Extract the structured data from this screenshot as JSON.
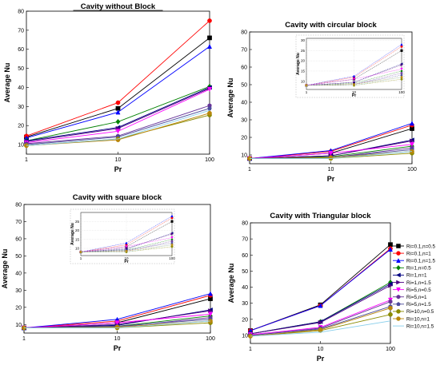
{
  "xcats": [
    "1",
    "10",
    "100"
  ],
  "colors": [
    "#000000",
    "#ff0000",
    "#0000ff",
    "#008000",
    "#000080",
    "#4b0082",
    "#ff00ff",
    "#663399",
    "#4b4b9b",
    "#8b8b00",
    "#b8860b",
    "#87ceeb"
  ],
  "markers": [
    "square",
    "circle",
    "triangle-up",
    "diamond",
    "triangle-left",
    "triangle-right",
    "triangle-down",
    "hexagon",
    "pentagon",
    "circle",
    "circle",
    "none"
  ],
  "legend": {
    "items": [
      "Ri=0.1,n=0.5",
      "Ri=0.1,n=1",
      "Ri=0.1,n=1.5",
      "Ri=1,n=0.5",
      "Ri=1,n=1",
      "Ri=1,n=1.5",
      "Ri=5,n=0.5",
      "Ri=5,n=1",
      "Ri=5,n=1.5",
      "Ri=10,n=0.5",
      "Ri=10,n=1",
      "Ri=10,n=1.5"
    ]
  },
  "chart_data": [
    {
      "type": "line",
      "title": "Cavity without Block",
      "xlabel": "Pr",
      "ylabel": "Average Nu",
      "x": [
        1,
        10,
        100
      ],
      "xscale": "log",
      "ylim": [
        5,
        80
      ],
      "yticks": [
        10,
        20,
        30,
        40,
        50,
        60,
        70,
        80
      ],
      "series": [
        {
          "values": [
            14,
            29,
            66
          ]
        },
        {
          "values": [
            14.5,
            32,
            75
          ]
        },
        {
          "values": [
            13.5,
            27,
            61.5
          ]
        },
        {
          "values": [
            12,
            22,
            40.5
          ]
        },
        {
          "values": [
            12,
            19,
            40
          ]
        },
        {
          "values": [
            11.5,
            18.5,
            39.5
          ]
        },
        {
          "values": [
            11,
            17,
            39
          ]
        },
        {
          "values": [
            10.5,
            14.5,
            30.5
          ]
        },
        {
          "values": [
            10,
            14,
            29
          ]
        },
        {
          "values": [
            9.5,
            13,
            25.5
          ]
        },
        {
          "values": [
            9.5,
            12.5,
            26.5
          ]
        },
        {
          "values": [
            9.5,
            13,
            28
          ]
        }
      ]
    },
    {
      "type": "line",
      "title": "Cavity with circular block",
      "xlabel": "Pr",
      "ylabel": "Average Nu",
      "x": [
        1,
        10,
        100
      ],
      "xscale": "log",
      "ylim": [
        5,
        80
      ],
      "yticks": [
        10,
        20,
        30,
        40,
        50,
        60,
        70,
        80
      ],
      "series": [
        {
          "values": [
            8,
            11,
            25
          ]
        },
        {
          "values": [
            8,
            12,
            27
          ]
        },
        {
          "values": [
            8,
            12.5,
            28
          ]
        },
        {
          "values": [
            8,
            9,
            15
          ]
        },
        {
          "values": [
            8,
            9.5,
            18.5
          ]
        },
        {
          "values": [
            8,
            9.5,
            18
          ]
        },
        {
          "values": [
            8,
            11,
            16
          ]
        },
        {
          "values": [
            8,
            8.5,
            14
          ]
        },
        {
          "values": [
            8,
            8.5,
            13
          ]
        },
        {
          "values": [
            8,
            8,
            11
          ]
        },
        {
          "values": [
            8,
            8.5,
            12
          ]
        },
        {
          "values": [
            8,
            8,
            12
          ]
        }
      ],
      "inset": {
        "ylabel": "Average Nu",
        "xlabel": "Pr",
        "xticks": [
          "1",
          "10",
          "100"
        ],
        "yticks": [
          10,
          15,
          20,
          25,
          30
        ],
        "ylim": [
          6,
          31
        ]
      }
    },
    {
      "type": "line",
      "title": "Cavity with square block",
      "xlabel": "Pr",
      "ylabel": "Average Nu",
      "x": [
        1,
        10,
        100
      ],
      "xscale": "log",
      "ylim": [
        5,
        80
      ],
      "yticks": [
        10,
        20,
        30,
        40,
        50,
        60,
        70,
        80
      ],
      "series": [
        {
          "values": [
            8,
            11,
            25
          ]
        },
        {
          "values": [
            8,
            12,
            27
          ]
        },
        {
          "values": [
            8,
            13,
            28
          ]
        },
        {
          "values": [
            8,
            9,
            15
          ]
        },
        {
          "values": [
            8,
            9.5,
            18.5
          ]
        },
        {
          "values": [
            8,
            10,
            18
          ]
        },
        {
          "values": [
            8,
            11,
            16
          ]
        },
        {
          "values": [
            8,
            8.5,
            14
          ]
        },
        {
          "values": [
            8,
            9,
            13
          ]
        },
        {
          "values": [
            8,
            8,
            11
          ]
        },
        {
          "values": [
            8,
            8.5,
            12
          ]
        },
        {
          "values": [
            8,
            8,
            12
          ]
        }
      ],
      "inset": {
        "ylabel": "Average Nu",
        "xlabel": "Pr",
        "xticks": [
          "1",
          "10",
          "100"
        ],
        "yticks": [
          10,
          15,
          20,
          25
        ],
        "ylim": [
          6,
          30
        ]
      }
    },
    {
      "type": "line",
      "title": "Cavity with Triangular block",
      "xlabel": "Pr",
      "ylabel": "Average Nu",
      "x": [
        1,
        10,
        100
      ],
      "xscale": "log",
      "ylim": [
        5,
        80
      ],
      "yticks": [
        10,
        20,
        30,
        40,
        50,
        60,
        70,
        80
      ],
      "series": [
        {
          "values": [
            13,
            29,
            66.5
          ]
        },
        {
          "values": [
            13,
            28.5,
            64
          ]
        },
        {
          "values": [
            13,
            28.5,
            63.5
          ]
        },
        {
          "values": [
            11,
            18.5,
            43
          ]
        },
        {
          "values": [
            11,
            18.5,
            42
          ]
        },
        {
          "values": [
            11,
            18,
            41
          ]
        },
        {
          "values": [
            10.5,
            15,
            32
          ]
        },
        {
          "values": [
            10,
            14.5,
            31
          ]
        },
        {
          "values": [
            10,
            14,
            28
          ]
        },
        {
          "values": [
            9.5,
            13,
            23
          ]
        },
        {
          "values": [
            9.5,
            13.5,
            27
          ]
        },
        {
          "values": [
            9.5,
            12,
            19
          ]
        }
      ]
    }
  ]
}
